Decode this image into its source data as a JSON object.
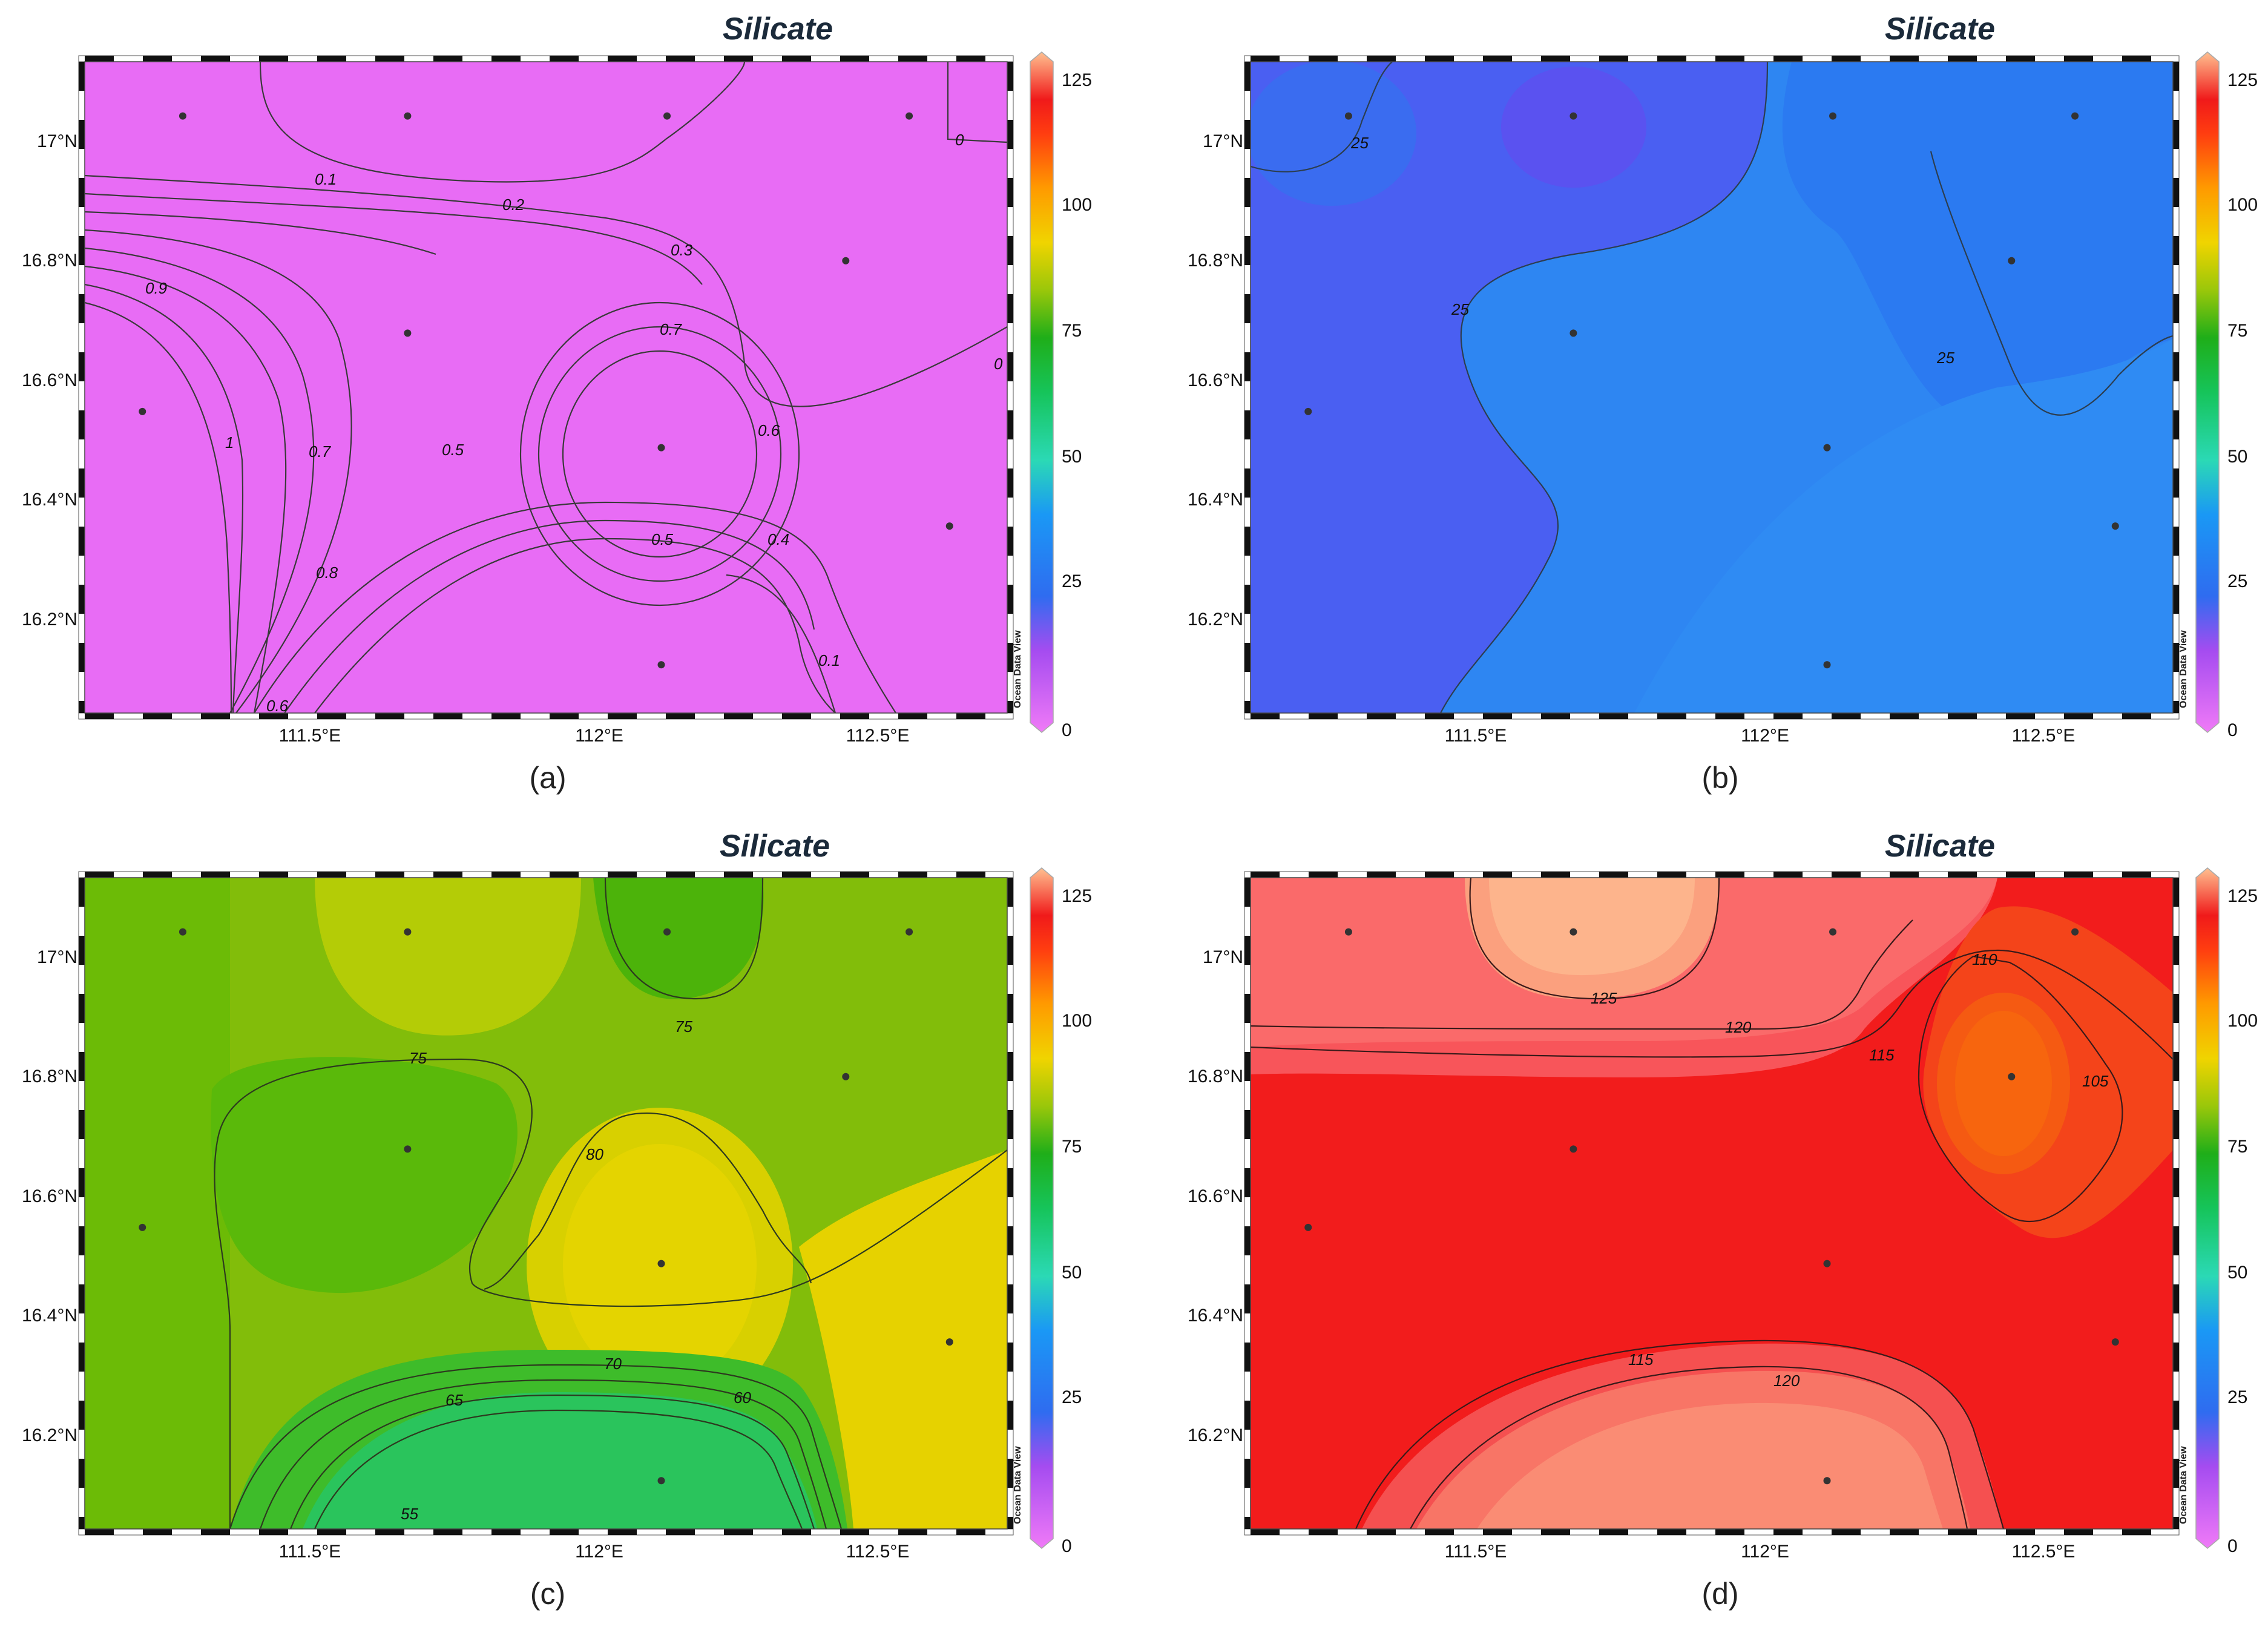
{
  "figure": {
    "panels": [
      {
        "id": "a",
        "title": "Silicate",
        "caption": "(a)",
        "watermark": "Ocean Data View",
        "background": "#e86cf5",
        "x_ticks": [
          "111.5°E",
          "112°E",
          "112.5°E"
        ],
        "y_ticks": [
          "17°N",
          "16.8°N",
          "16.6°N",
          "16.4°N",
          "16.2°N"
        ],
        "colorbar_ticks": [
          "125",
          "100",
          "75",
          "50",
          "25",
          "0"
        ],
        "contour_labels": [
          "0",
          "0.1",
          "0.2",
          "0.3",
          "0.9",
          "0.7",
          "1",
          "0.7",
          "0.5",
          "0.6",
          "0.5",
          "0.4",
          "0.8",
          "0.1",
          "0",
          "0.6"
        ]
      },
      {
        "id": "b",
        "title": "Silicate",
        "caption": "(b)",
        "watermark": "Ocean Data View",
        "background": "#2f86f0",
        "x_ticks": [
          "111.5°E",
          "112°E",
          "112.5°E"
        ],
        "y_ticks": [
          "17°N",
          "16.8°N",
          "16.6°N",
          "16.4°N",
          "16.2°N"
        ],
        "colorbar_ticks": [
          "125",
          "100",
          "75",
          "50",
          "25",
          "0"
        ],
        "contour_labels": [
          "25",
          "25",
          "25"
        ]
      },
      {
        "id": "c",
        "title": "Silicate",
        "caption": "(c)",
        "watermark": "Ocean Data View",
        "background": "#8cbf0a",
        "x_ticks": [
          "111.5°E",
          "112°E",
          "112.5°E"
        ],
        "y_ticks": [
          "17°N",
          "16.8°N",
          "16.6°N",
          "16.4°N",
          "16.2°N"
        ],
        "colorbar_ticks": [
          "125",
          "100",
          "75",
          "50",
          "25",
          "0"
        ],
        "contour_labels": [
          "75",
          "75",
          "80",
          "70",
          "65",
          "60",
          "55"
        ]
      },
      {
        "id": "d",
        "title": "Silicate",
        "caption": "(d)",
        "watermark": "Ocean Data View",
        "background": "#f01e1e",
        "x_ticks": [
          "111.5°E",
          "112°E",
          "112.5°E"
        ],
        "y_ticks": [
          "17°N",
          "16.8°N",
          "16.6°N",
          "16.4°N",
          "16.2°N"
        ],
        "colorbar_ticks": [
          "125",
          "100",
          "75",
          "50",
          "25",
          "0"
        ],
        "contour_labels": [
          "110",
          "125",
          "120",
          "115",
          "105",
          "115",
          "120"
        ]
      }
    ]
  },
  "chart_data": [
    {
      "type": "heatmap",
      "title": "Silicate",
      "panel": "a",
      "x_axis": {
        "ticks": [
          "111.5°E",
          "112°E",
          "112.5°E"
        ],
        "range": [
          111.1,
          112.7
        ]
      },
      "y_axis": {
        "ticks": [
          "17°N",
          "16.8°N",
          "16.6°N",
          "16.4°N",
          "16.2°N"
        ],
        "range": [
          16.05,
          17.13
        ]
      },
      "colorbar": {
        "min": 0,
        "max": 125,
        "ticks": [
          125,
          100,
          75,
          50,
          25,
          0
        ]
      },
      "contour_levels": [
        0,
        0.1,
        0.2,
        0.3,
        0.4,
        0.5,
        0.6,
        0.7,
        0.8,
        0.9,
        1
      ],
      "stations": [
        [
          111.27,
          17.04
        ],
        [
          111.66,
          17.04
        ],
        [
          112.11,
          17.04
        ],
        [
          112.53,
          17.04
        ],
        [
          112.42,
          16.8
        ],
        [
          111.66,
          16.68
        ],
        [
          111.2,
          16.55
        ],
        [
          112.1,
          16.49
        ],
        [
          112.6,
          16.36
        ],
        [
          112.1,
          16.13
        ]
      ]
    },
    {
      "type": "heatmap",
      "title": "Silicate",
      "panel": "b",
      "x_axis": {
        "ticks": [
          "111.5°E",
          "112°E",
          "112.5°E"
        ],
        "range": [
          111.1,
          112.7
        ]
      },
      "y_axis": {
        "ticks": [
          "17°N",
          "16.8°N",
          "16.6°N",
          "16.4°N",
          "16.2°N"
        ],
        "range": [
          16.05,
          17.13
        ]
      },
      "colorbar": {
        "min": 0,
        "max": 125,
        "ticks": [
          125,
          100,
          75,
          50,
          25,
          0
        ]
      },
      "contour_levels": [
        25
      ],
      "stations": [
        [
          111.27,
          17.04
        ],
        [
          111.66,
          17.04
        ],
        [
          112.11,
          17.04
        ],
        [
          112.53,
          17.04
        ],
        [
          112.42,
          16.8
        ],
        [
          111.66,
          16.68
        ],
        [
          111.2,
          16.55
        ],
        [
          112.1,
          16.49
        ],
        [
          112.6,
          16.36
        ],
        [
          112.1,
          16.13
        ]
      ]
    },
    {
      "type": "heatmap",
      "title": "Silicate",
      "panel": "c",
      "x_axis": {
        "ticks": [
          "111.5°E",
          "112°E",
          "112.5°E"
        ],
        "range": [
          111.1,
          112.7
        ]
      },
      "y_axis": {
        "ticks": [
          "17°N",
          "16.8°N",
          "16.6°N",
          "16.4°N",
          "16.2°N"
        ],
        "range": [
          16.05,
          17.13
        ]
      },
      "colorbar": {
        "min": 0,
        "max": 125,
        "ticks": [
          125,
          100,
          75,
          50,
          25,
          0
        ]
      },
      "contour_levels": [
        55,
        60,
        65,
        70,
        75,
        80
      ],
      "stations": [
        [
          111.27,
          17.04
        ],
        [
          111.66,
          17.04
        ],
        [
          112.11,
          17.04
        ],
        [
          112.53,
          17.04
        ],
        [
          112.42,
          16.8
        ],
        [
          111.66,
          16.68
        ],
        [
          111.2,
          16.55
        ],
        [
          112.1,
          16.49
        ],
        [
          112.6,
          16.36
        ],
        [
          112.1,
          16.13
        ]
      ]
    },
    {
      "type": "heatmap",
      "title": "Silicate",
      "panel": "d",
      "x_axis": {
        "ticks": [
          "111.5°E",
          "112°E",
          "112.5°E"
        ],
        "range": [
          111.1,
          112.7
        ]
      },
      "y_axis": {
        "ticks": [
          "17°N",
          "16.8°N",
          "16.6°N",
          "16.4°N",
          "16.2°N"
        ],
        "range": [
          16.05,
          17.13
        ]
      },
      "colorbar": {
        "min": 0,
        "max": 125,
        "ticks": [
          125,
          100,
          75,
          50,
          25,
          0
        ]
      },
      "contour_levels": [
        105,
        110,
        115,
        120,
        125
      ],
      "stations": [
        [
          111.27,
          17.04
        ],
        [
          111.66,
          17.04
        ],
        [
          112.11,
          17.04
        ],
        [
          112.53,
          17.04
        ],
        [
          112.42,
          16.8
        ],
        [
          111.66,
          16.68
        ],
        [
          111.2,
          16.55
        ],
        [
          112.1,
          16.49
        ],
        [
          112.6,
          16.36
        ],
        [
          112.1,
          16.13
        ]
      ]
    }
  ]
}
